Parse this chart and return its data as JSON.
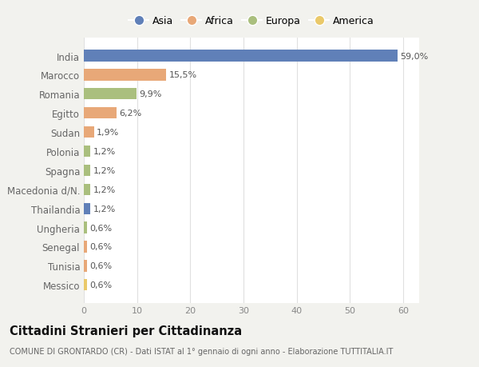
{
  "categories": [
    "Messico",
    "Tunisia",
    "Senegal",
    "Ungheria",
    "Thailandia",
    "Macedonia d/N.",
    "Spagna",
    "Polonia",
    "Sudan",
    "Egitto",
    "Romania",
    "Marocco",
    "India"
  ],
  "values": [
    0.6,
    0.6,
    0.6,
    0.6,
    1.2,
    1.2,
    1.2,
    1.2,
    1.9,
    6.2,
    9.9,
    15.5,
    59.0
  ],
  "labels": [
    "0,6%",
    "0,6%",
    "0,6%",
    "0,6%",
    "1,2%",
    "1,2%",
    "1,2%",
    "1,2%",
    "1,9%",
    "6,2%",
    "9,9%",
    "15,5%",
    "59,0%"
  ],
  "colors": [
    "#EAC96A",
    "#E8A878",
    "#E8A878",
    "#AABF7E",
    "#6080B8",
    "#AABF7E",
    "#AABF7E",
    "#AABF7E",
    "#E8A878",
    "#E8A878",
    "#AABF7E",
    "#E8A878",
    "#6080B8"
  ],
  "continent_colors": {
    "Asia": "#6080B8",
    "Africa": "#E8A878",
    "Europa": "#AABF7E",
    "America": "#EAC96A"
  },
  "xlim": [
    0,
    63
  ],
  "xticks": [
    0,
    10,
    20,
    30,
    40,
    50,
    60
  ],
  "title": "Cittadini Stranieri per Cittadinanza",
  "subtitle": "COMUNE DI GRONTARDO (CR) - Dati ISTAT al 1° gennaio di ogni anno - Elaborazione TUTTITALIA.IT",
  "background_color": "#f2f2ee",
  "bar_background": "#ffffff",
  "grid_color": "#e0e0e0"
}
